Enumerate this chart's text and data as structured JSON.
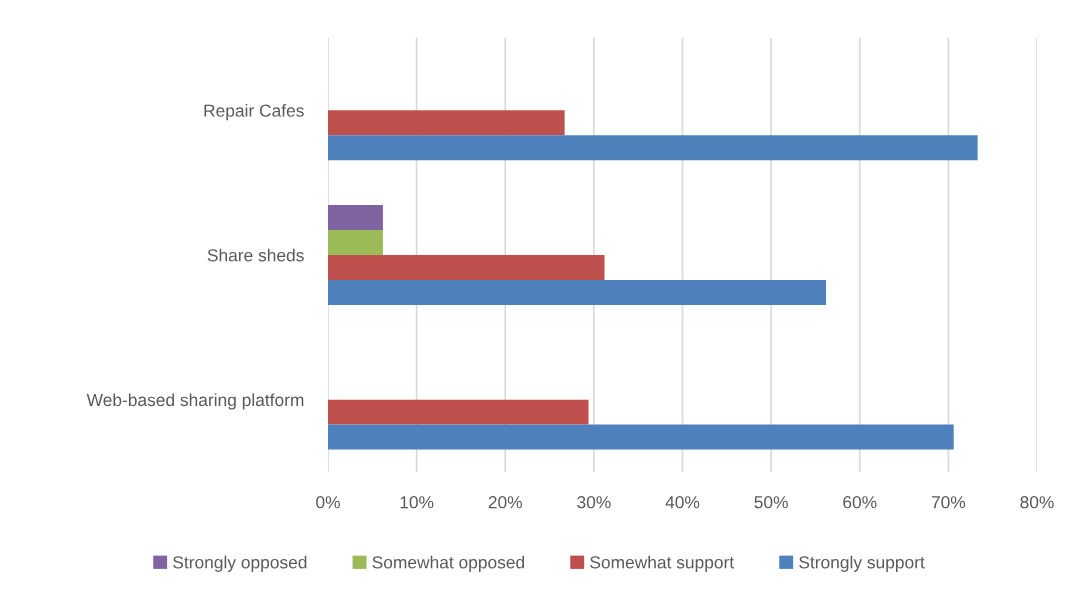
{
  "chart_data": {
    "type": "bar",
    "orientation": "horizontal",
    "categories": [
      "Repair Cafes",
      "Share sheds",
      "Web-based sharing platform"
    ],
    "series": [
      {
        "name": "Strongly opposed",
        "color": "#8064a2",
        "values": [
          null,
          6.2,
          null
        ]
      },
      {
        "name": "Somewhat opposed",
        "color": "#9bbb59",
        "values": [
          null,
          6.2,
          null
        ]
      },
      {
        "name": "Somewhat support",
        "color": "#c0504d",
        "values": [
          26.7,
          31.2,
          29.4
        ]
      },
      {
        "name": "Strongly support",
        "color": "#4f81bd",
        "values": [
          73.3,
          56.2,
          70.6
        ]
      }
    ],
    "xlim": [
      0,
      80
    ],
    "xticks": [
      {
        "value": 0,
        "label": "0%"
      },
      {
        "value": 10,
        "label": "10%"
      },
      {
        "value": 20,
        "label": "20%"
      },
      {
        "value": 30,
        "label": "30%"
      },
      {
        "value": 40,
        "label": "40%"
      },
      {
        "value": 50,
        "label": "50%"
      },
      {
        "value": 60,
        "label": "60%"
      },
      {
        "value": 70,
        "label": "70%"
      },
      {
        "value": 80,
        "label": "80%"
      }
    ],
    "grid": "x",
    "legend": "bottom"
  }
}
